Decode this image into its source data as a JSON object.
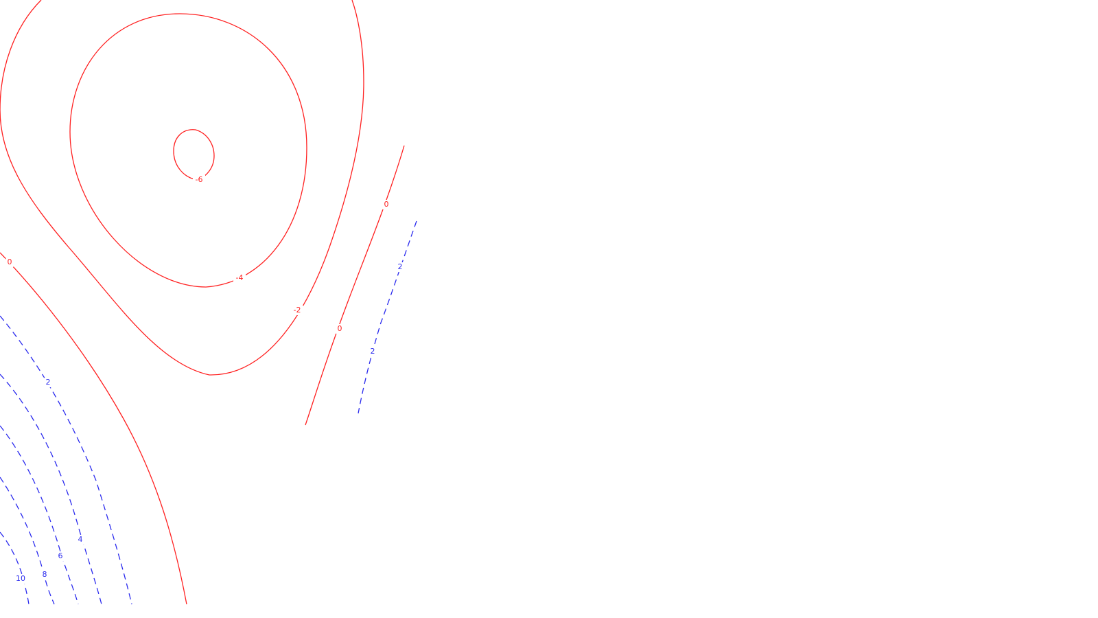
{
  "chart_data": {
    "type": "contour",
    "title": "",
    "xlabel": "",
    "ylabel": "",
    "grid": false,
    "legend": "none",
    "colors": {
      "negative": "#ff2020",
      "positive": "#2a2aee"
    },
    "styles": {
      "negative": "solid",
      "positive": "dashed"
    },
    "contour_levels": [
      {
        "level": -6,
        "label": "-6",
        "sign": "negative"
      },
      {
        "level": -4,
        "label": "-4",
        "sign": "negative"
      },
      {
        "level": -2,
        "label": "-2",
        "sign": "negative"
      },
      {
        "level": 0,
        "label": "0",
        "sign": "negative"
      },
      {
        "level": 2,
        "label": "2",
        "sign": "positive"
      },
      {
        "level": 4,
        "label": "4",
        "sign": "positive"
      },
      {
        "level": 6,
        "label": "6",
        "sign": "positive"
      },
      {
        "level": 8,
        "label": "8",
        "sign": "positive"
      },
      {
        "level": 10,
        "label": "10",
        "sign": "positive"
      }
    ]
  }
}
